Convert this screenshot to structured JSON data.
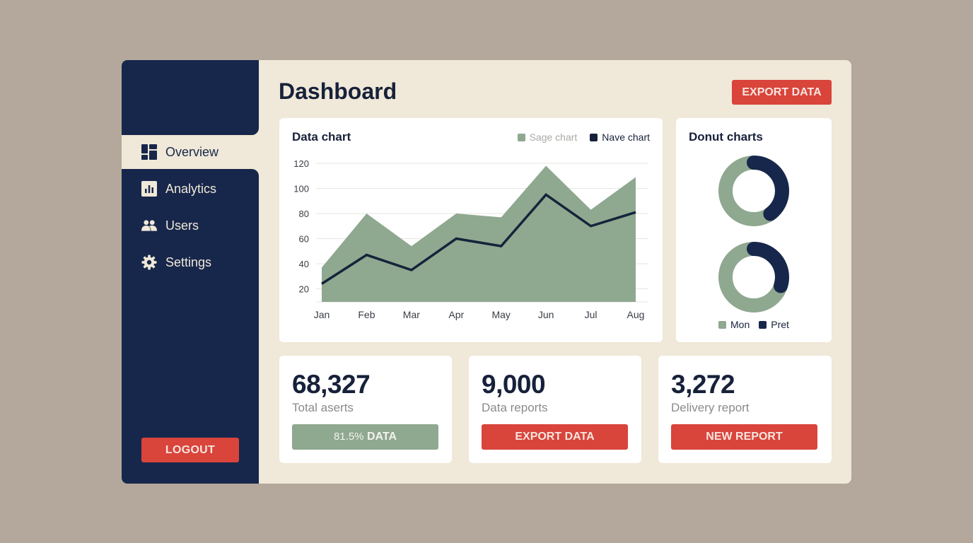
{
  "sidebar": {
    "items": [
      {
        "label": "Overview",
        "icon": "dashboard-icon",
        "active": true
      },
      {
        "label": "Analytics",
        "icon": "bar-chart-icon",
        "active": false
      },
      {
        "label": "Users",
        "icon": "users-icon",
        "active": false
      },
      {
        "label": "Settings",
        "icon": "gear-icon",
        "active": false
      }
    ],
    "logout_label": "LOGOUT"
  },
  "header": {
    "title": "Dashboard",
    "export_label": "EXPORT DATA"
  },
  "data_chart": {
    "title": "Data chart",
    "legend": [
      {
        "label": "Sage chart",
        "color": "#8fa890"
      },
      {
        "label": "Nave chart",
        "color": "#17213a"
      }
    ]
  },
  "donut_card": {
    "title": "Donut charts",
    "legend": [
      {
        "label": "Mon",
        "color": "#8fa890"
      },
      {
        "label": "Pret",
        "color": "#17274b"
      }
    ]
  },
  "stats": [
    {
      "value": "68,327",
      "label": "Total aserts",
      "button_pct": "81.5%",
      "button_text": "DATA",
      "button_style": "sage"
    },
    {
      "value": "9,000",
      "label": "Data reports",
      "button_text": "EXPORT DATA",
      "button_style": "red"
    },
    {
      "value": "3,272",
      "label": "Delivery report",
      "button_text": "NEW REPORT",
      "button_style": "red"
    }
  ],
  "colors": {
    "navy": "#17274b",
    "sage": "#8fa890",
    "red": "#d9443b",
    "cream": "#f0e8d8",
    "background": "#b3a89b"
  },
  "chart_data": [
    {
      "type": "area",
      "title": "Data chart",
      "categories": [
        "Jan",
        "Feb",
        "Mar",
        "Apr",
        "May",
        "Jun",
        "Jul",
        "Aug"
      ],
      "series": [
        {
          "name": "Sage chart",
          "type": "area",
          "color": "#8fa890",
          "values": [
            37,
            80,
            54,
            80,
            77,
            118,
            83,
            109
          ]
        },
        {
          "name": "Nave chart",
          "type": "line",
          "color": "#17213a",
          "values": [
            24,
            47,
            35,
            60,
            54,
            95,
            70,
            81
          ]
        }
      ],
      "yticks": [
        20,
        40,
        60,
        80,
        100,
        120
      ],
      "ylim": [
        10,
        120
      ],
      "xlabel": "",
      "ylabel": "",
      "grid": true,
      "legend_position": "top-right"
    },
    {
      "type": "pie",
      "title": "Donut charts",
      "donuts": [
        {
          "slices": [
            {
              "name": "Mon",
              "value": 60
            },
            {
              "name": "Pret",
              "value": 40
            }
          ]
        },
        {
          "slices": [
            {
              "name": "Mon",
              "value": 70
            },
            {
              "name": "Pret",
              "value": 30
            }
          ]
        }
      ],
      "legend": [
        "Mon",
        "Pret"
      ],
      "legend_position": "bottom"
    }
  ]
}
